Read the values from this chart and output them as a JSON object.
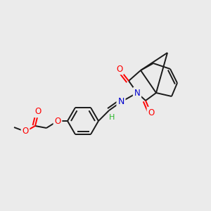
{
  "bg_color": "#ebebeb",
  "bond_color": "#1a1a1a",
  "bond_width": 1.4,
  "atom_colors": {
    "O": "#ff0000",
    "N": "#0000cc",
    "H": "#2db82d"
  },
  "figsize": [
    3.0,
    3.0
  ],
  "dpi": 100
}
